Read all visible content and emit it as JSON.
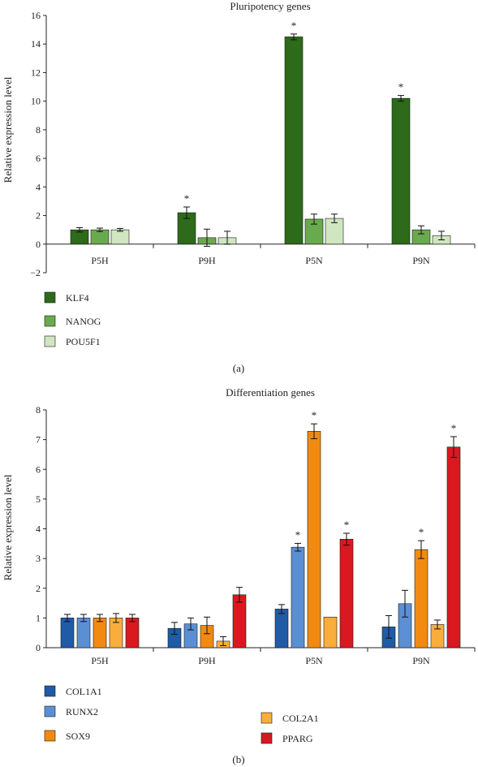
{
  "chart_data": [
    {
      "type": "bar",
      "title": "Pluripotency genes",
      "ylabel": "Relative expression level",
      "xlabel": "",
      "ylim": [
        -2,
        16
      ],
      "yticks": [
        -2,
        0,
        2,
        4,
        6,
        8,
        10,
        12,
        14,
        16
      ],
      "categories": [
        "P5H",
        "P9H",
        "P5N",
        "P9N"
      ],
      "panel_label": "(a)",
      "series": [
        {
          "name": "KLF4",
          "color": "#2d6a1a",
          "values": [
            1.0,
            2.2,
            14.5,
            10.2
          ],
          "errors": [
            0.15,
            0.4,
            0.2,
            0.2
          ],
          "significant": [
            false,
            true,
            true,
            true
          ]
        },
        {
          "name": "NANOG",
          "color": "#6aaa4e",
          "values": [
            1.0,
            0.45,
            1.75,
            1.0
          ],
          "errors": [
            0.12,
            0.6,
            0.35,
            0.28
          ],
          "significant": [
            false,
            false,
            false,
            false
          ]
        },
        {
          "name": "POU5F1",
          "color": "#cfe6c0",
          "values": [
            1.0,
            0.45,
            1.8,
            0.6
          ],
          "errors": [
            0.1,
            0.45,
            0.3,
            0.3
          ],
          "significant": [
            false,
            false,
            false,
            false
          ]
        }
      ],
      "significance_marker": "*"
    },
    {
      "type": "bar",
      "title": "Differentiation genes",
      "ylabel": "Relative expression level",
      "xlabel": "",
      "ylim": [
        0,
        8
      ],
      "yticks": [
        0,
        1,
        2,
        3,
        4,
        5,
        6,
        7,
        8
      ],
      "categories": [
        "P5H",
        "P9H",
        "P5N",
        "P9N"
      ],
      "panel_label": "(b)",
      "series": [
        {
          "name": "COL1A1",
          "color": "#1f5ba6",
          "values": [
            1.0,
            0.65,
            1.3,
            0.7
          ],
          "errors": [
            0.12,
            0.2,
            0.15,
            0.38
          ],
          "significant": [
            false,
            false,
            false,
            false
          ]
        },
        {
          "name": "RUNX2",
          "color": "#5b8fd4",
          "values": [
            1.0,
            0.8,
            3.38,
            1.48
          ],
          "errors": [
            0.12,
            0.2,
            0.13,
            0.45
          ],
          "significant": [
            false,
            false,
            true,
            false
          ]
        },
        {
          "name": "SOX9",
          "color": "#f28a12",
          "values": [
            1.0,
            0.75,
            7.28,
            3.3
          ],
          "errors": [
            0.12,
            0.28,
            0.25,
            0.3
          ],
          "significant": [
            false,
            false,
            true,
            true
          ]
        },
        {
          "name": "COL2A1",
          "color": "#f9ae3c",
          "values": [
            1.0,
            0.22,
            1.03,
            0.78
          ],
          "errors": [
            0.15,
            0.15,
            0.0,
            0.15
          ],
          "significant": [
            false,
            false,
            false,
            false
          ]
        },
        {
          "name": "PPARG",
          "color": "#d9191f",
          "values": [
            1.0,
            1.78,
            3.65,
            6.75
          ],
          "errors": [
            0.12,
            0.25,
            0.2,
            0.35
          ],
          "significant": [
            false,
            false,
            true,
            true
          ]
        }
      ],
      "significance_marker": "*"
    }
  ]
}
